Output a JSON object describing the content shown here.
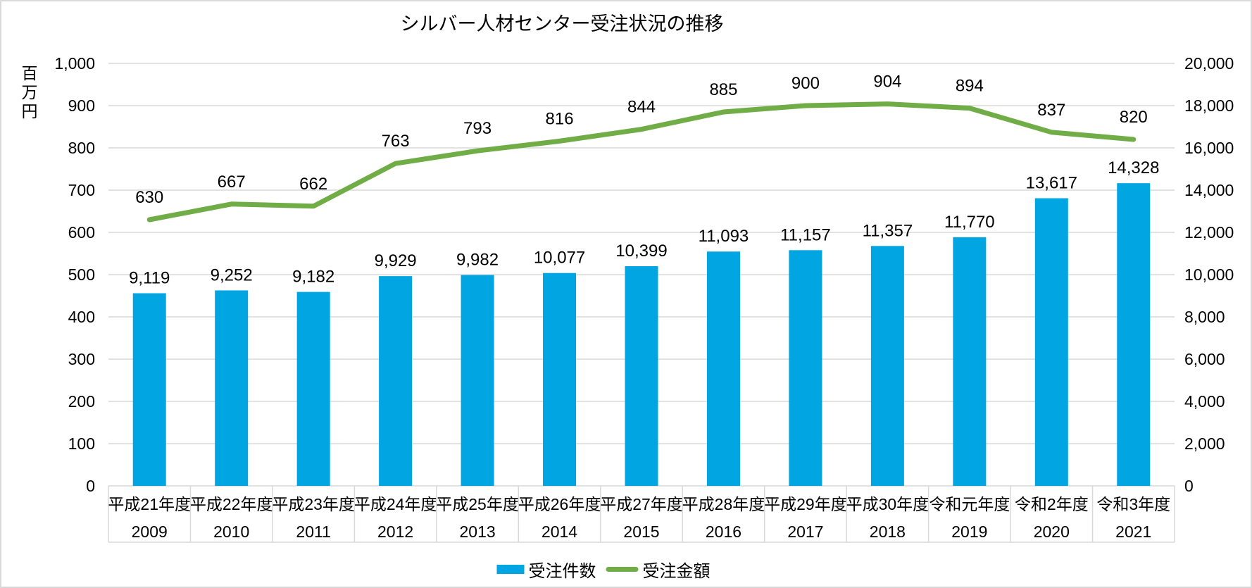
{
  "title": "シルバー人材センター受注状況の推移",
  "chart_data": {
    "type": "bar",
    "title": "シルバー人材センター受注状況の推移",
    "categories": [
      {
        "era": "平成21年度",
        "year": "2009"
      },
      {
        "era": "平成22年度",
        "year": "2010"
      },
      {
        "era": "平成23年度",
        "year": "2011"
      },
      {
        "era": "平成24年度",
        "year": "2012"
      },
      {
        "era": "平成25年度",
        "year": "2013"
      },
      {
        "era": "平成26年度",
        "year": "2014"
      },
      {
        "era": "平成27年度",
        "year": "2015"
      },
      {
        "era": "平成28年度",
        "year": "2016"
      },
      {
        "era": "平成29年度",
        "year": "2017"
      },
      {
        "era": "平成30年度",
        "year": "2018"
      },
      {
        "era": "令和元年度",
        "year": "2019"
      },
      {
        "era": "令和2年度",
        "year": "2020"
      },
      {
        "era": "令和3年度",
        "year": "2021"
      }
    ],
    "series": [
      {
        "name": "受注件数",
        "type": "bar",
        "axis": "right",
        "color": "#00A5E2",
        "values": [
          9119,
          9252,
          9182,
          9929,
          9982,
          10077,
          10399,
          11093,
          11157,
          11357,
          11770,
          13617,
          14328
        ]
      },
      {
        "name": "受注金額",
        "type": "line",
        "axis": "left",
        "color": "#70AD47",
        "values": [
          630,
          667,
          662,
          763,
          793,
          816,
          844,
          885,
          900,
          904,
          894,
          837,
          820
        ]
      }
    ],
    "left_axis": {
      "title": "百万円",
      "min": 0,
      "max": 1000,
      "step": 100
    },
    "right_axis": {
      "min": 0,
      "max": 20000,
      "step": 2000
    },
    "grid": true,
    "legend_position": "bottom"
  },
  "colors": {
    "bar": "#00A5E2",
    "line": "#70AD47",
    "grid": "#D9D9D9",
    "frame": "#D9D9D9",
    "text": "#000000",
    "background": "#FFFFFF"
  }
}
